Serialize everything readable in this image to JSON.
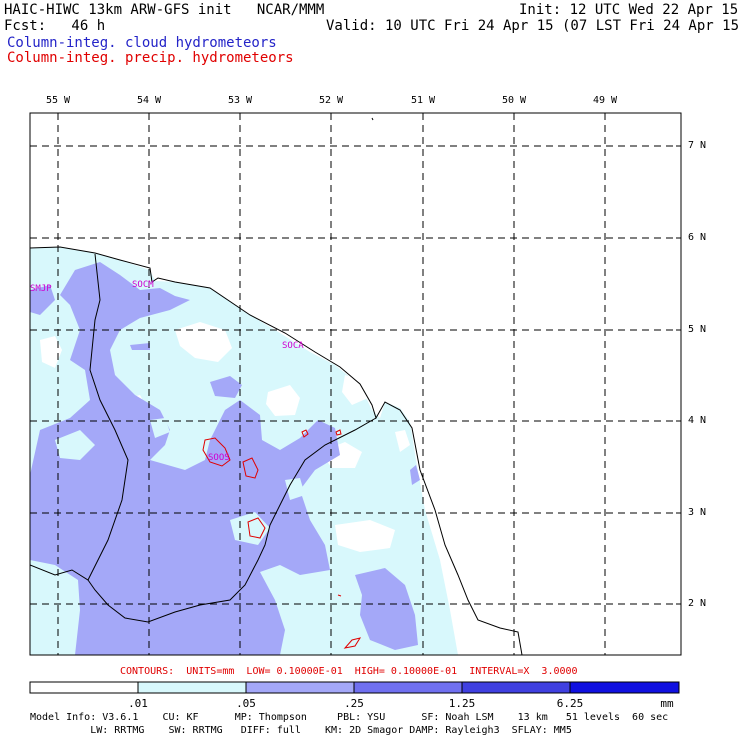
{
  "header": {
    "model_title": "HAIC-HIWC 13km ARW-GFS init   NCAR/MMM",
    "init_time": "Init: 12 UTC Wed 22 Apr 15",
    "forecast": "Fcst:   46 h",
    "valid_time": "Valid: 10 UTC Fri 24 Apr 15 (07 LST Fri 24 Apr 15)",
    "field_cloud": "Column-integ. cloud hydrometeors",
    "field_precip": "Column-integ. precip. hydrometeors"
  },
  "colors": {
    "fill_level1": "#d8f8fc",
    "fill_level2": "#a4a8f8",
    "fill_level3": "#7070f0",
    "fill_level4": "#4040e0",
    "fill_level5": "#1010e0",
    "precip_contour": "#e00000",
    "station_text": "#d000d0",
    "title_blue": "#2424c8"
  },
  "map": {
    "lon_labels": [
      "55 W",
      "54 W",
      "53 W",
      "52 W",
      "51 W",
      "50 W",
      "49 W"
    ],
    "lat_labels": [
      "7 N",
      "6 N",
      "5 N",
      "4 N",
      "3 N",
      "2 N"
    ],
    "stations": [
      "SMJP",
      "SOCM",
      "SOCA",
      "SOOS"
    ]
  },
  "contours_text": "CONTOURS:  UNITS=mm  LOW= 0.10000E-01  HIGH= 0.10000E-01  INTERVAL=X  3.0000",
  "colorbar": {
    "levels": [
      ".01",
      ".05",
      ".25",
      "1.25",
      "6.25"
    ],
    "units": "mm"
  },
  "footer": {
    "line1": "Model Info: V3.6.1    CU: KF      MP: Thompson     PBL: YSU      SF: Noah LSM    13 km   51 levels  60 sec",
    "line2": "          LW: RRTMG    SW: RRTMG   DIFF: full    KM: 2D Smagor DAMP: Rayleigh3  SFLAY: MM5"
  }
}
